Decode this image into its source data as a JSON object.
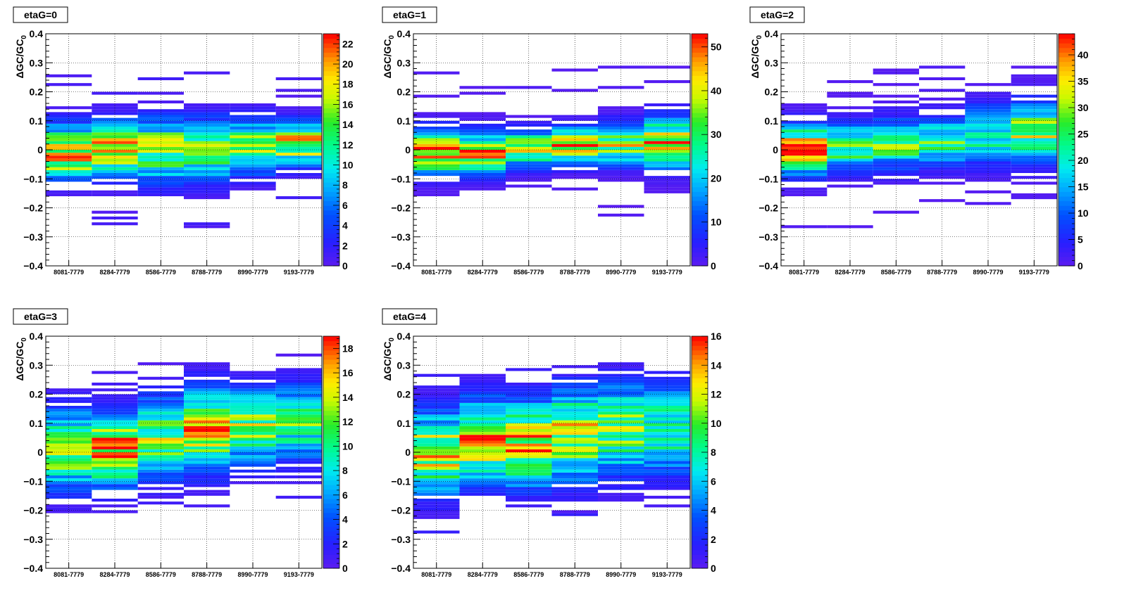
{
  "chart_data": [
    {
      "type": "heatmap",
      "title": "etaG=0",
      "ylabel": "ΔGC/GC0",
      "categories": [
        "8081-7779",
        "8284-7779",
        "8586-7779",
        "8788-7779",
        "8990-7779",
        "9193-7779"
      ],
      "ylim": [
        -0.4,
        0.4
      ],
      "yticks": [
        "−0.4",
        "−0.3",
        "−0.2",
        "−0.1",
        "0",
        "0.1",
        "0.2",
        "0.3",
        "0.4"
      ],
      "zmax": 23,
      "zticks": [
        "0",
        "2",
        "4",
        "6",
        "8",
        "10",
        "12",
        "14",
        "16",
        "18",
        "20",
        "22"
      ],
      "grid": true,
      "center": [
        -0.01,
        0.0,
        0.0,
        0.0,
        0.01,
        0.02
      ],
      "spread": [
        0.12,
        0.12,
        0.14,
        0.14,
        0.12,
        0.1
      ],
      "peak": [
        23,
        22,
        18,
        16,
        18,
        21
      ]
    },
    {
      "type": "heatmap",
      "title": "etaG=1",
      "ylabel": "ΔGC/GC0",
      "categories": [
        "8081-7779",
        "8284-7779",
        "8586-7779",
        "8788-7779",
        "8990-7779",
        "9193-7779"
      ],
      "ylim": [
        -0.4,
        0.4
      ],
      "yticks": [
        "−0.4",
        "−0.3",
        "−0.2",
        "−0.1",
        "0",
        "0.1",
        "0.2",
        "0.3",
        "0.4"
      ],
      "zmax": 53,
      "zticks": [
        "0",
        "10",
        "20",
        "30",
        "40",
        "50"
      ],
      "grid": true,
      "center": [
        -0.01,
        -0.01,
        0.005,
        0.015,
        0.02,
        0.025
      ],
      "spread": [
        0.1,
        0.09,
        0.08,
        0.08,
        0.09,
        0.11
      ],
      "peak": [
        52,
        50,
        47,
        52,
        42,
        50
      ]
    },
    {
      "type": "heatmap",
      "title": "etaG=2",
      "ylabel": "ΔGC/GC0",
      "categories": [
        "8081-7779",
        "8284-7779",
        "8586-7779",
        "8788-7779",
        "8990-7779",
        "9193-7779"
      ],
      "ylim": [
        -0.4,
        0.4
      ],
      "yticks": [
        "−0.4",
        "−0.3",
        "−0.2",
        "−0.1",
        "0",
        "0.1",
        "0.2",
        "0.3",
        "0.4"
      ],
      "zmax": 44,
      "zticks": [
        "0",
        "5",
        "10",
        "15",
        "20",
        "25",
        "30",
        "35",
        "40"
      ],
      "grid": true,
      "center": [
        0.0,
        0.01,
        0.02,
        0.03,
        0.05,
        0.06
      ],
      "spread": [
        0.11,
        0.1,
        0.11,
        0.11,
        0.13,
        0.13
      ],
      "peak": [
        44,
        33,
        30,
        27,
        25,
        34
      ]
    },
    {
      "type": "heatmap",
      "title": "etaG=3",
      "ylabel": "ΔGC/GC0",
      "categories": [
        "8081-7779",
        "8284-7779",
        "8586-7779",
        "8788-7779",
        "8990-7779",
        "9193-7779"
      ],
      "ylim": [
        -0.4,
        0.4
      ],
      "yticks": [
        "−0.4",
        "−0.3",
        "−0.2",
        "−0.1",
        "0",
        "0.1",
        "0.2",
        "0.3",
        "0.4"
      ],
      "zmax": 19,
      "zticks": [
        "0",
        "2",
        "4",
        "6",
        "8",
        "10",
        "12",
        "14",
        "16",
        "18"
      ],
      "grid": true,
      "center": [
        0.01,
        0.01,
        0.05,
        0.08,
        0.09,
        0.1
      ],
      "spread": [
        0.17,
        0.16,
        0.18,
        0.18,
        0.17,
        0.17
      ],
      "peak": [
        17,
        19,
        14,
        19,
        14,
        12
      ]
    },
    {
      "type": "heatmap",
      "title": "etaG=4",
      "ylabel": "ΔGC/GC0",
      "categories": [
        "8081-7779",
        "8284-7779",
        "8586-7779",
        "8788-7779",
        "8990-7779",
        "9193-7779"
      ],
      "ylim": [
        -0.4,
        0.4
      ],
      "yticks": [
        "−0.4",
        "−0.3",
        "−0.2",
        "−0.1",
        "0",
        "0.1",
        "0.2",
        "0.3",
        "0.4"
      ],
      "zmax": 16,
      "zticks": [
        "0",
        "2",
        "4",
        "6",
        "8",
        "10",
        "12",
        "14",
        "16"
      ],
      "grid": true,
      "center": [
        0.0,
        0.04,
        0.03,
        0.06,
        0.08,
        0.08
      ],
      "spread": [
        0.18,
        0.18,
        0.19,
        0.2,
        0.2,
        0.2
      ],
      "peak": [
        14,
        15,
        15,
        14,
        12,
        10
      ]
    }
  ]
}
